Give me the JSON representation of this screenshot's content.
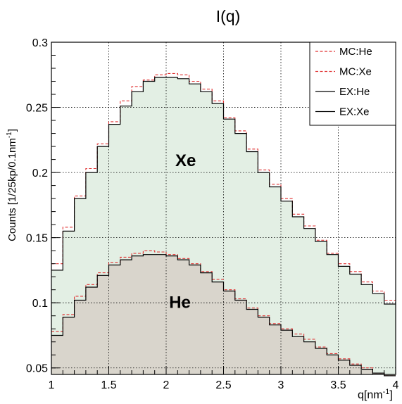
{
  "chart_data": {
    "type": "histogram",
    "title": "I(q)",
    "xlabel_main": "q[nm",
    "xlabel_sup": "-1",
    "xlabel_end": "]",
    "ylabel_main": "Counts [1/25kp/0.1nm",
    "ylabel_sup": "-1",
    "ylabel_end": "]",
    "xlim": [
      1,
      4
    ],
    "ylim": [
      0.045,
      0.3
    ],
    "x_ticks": [
      "1",
      "1.5",
      "2",
      "2.5",
      "3",
      "3.5",
      "4"
    ],
    "y_ticks": [
      "0.05",
      "0.1",
      "0.15",
      "0.2",
      "0.25",
      "0.3"
    ],
    "grid": true,
    "bin_edges": [
      1.0,
      1.1,
      1.2,
      1.3,
      1.4,
      1.5,
      1.6,
      1.7,
      1.8,
      1.9,
      2.0,
      2.1,
      2.2,
      2.3,
      2.4,
      2.5,
      2.6,
      2.7,
      2.8,
      2.9,
      3.0,
      3.1,
      3.2,
      3.3,
      3.4,
      3.5,
      3.6,
      3.7,
      3.8,
      3.9,
      4.0
    ],
    "series": [
      {
        "name": "MC:He",
        "style": "dashed",
        "color": "#e03030",
        "values": [
          0.078,
          0.091,
          0.105,
          0.114,
          0.123,
          0.131,
          0.135,
          0.138,
          0.14,
          0.139,
          0.137,
          0.134,
          0.13,
          0.124,
          0.118,
          0.11,
          0.103,
          0.096,
          0.09,
          0.084,
          0.08,
          0.076,
          0.072,
          0.066,
          0.061,
          0.057,
          0.053,
          0.05,
          0.046,
          0.044
        ]
      },
      {
        "name": "MC:Xe",
        "style": "dashed",
        "color": "#e03030",
        "values": [
          0.13,
          0.158,
          0.182,
          0.203,
          0.222,
          0.239,
          0.255,
          0.266,
          0.271,
          0.275,
          0.276,
          0.275,
          0.27,
          0.264,
          0.255,
          0.242,
          0.232,
          0.218,
          0.202,
          0.191,
          0.18,
          0.168,
          0.159,
          0.148,
          0.138,
          0.13,
          0.124,
          0.116,
          0.109,
          0.102
        ]
      },
      {
        "name": "EX:He",
        "style": "solid",
        "color": "#000000",
        "values": [
          0.075,
          0.089,
          0.102,
          0.112,
          0.121,
          0.129,
          0.133,
          0.136,
          0.137,
          0.137,
          0.136,
          0.133,
          0.129,
          0.123,
          0.116,
          0.109,
          0.102,
          0.095,
          0.089,
          0.083,
          0.079,
          0.074,
          0.07,
          0.065,
          0.06,
          0.056,
          0.052,
          0.049,
          0.046,
          0.044
        ]
      },
      {
        "name": "EX:Xe",
        "style": "solid",
        "color": "#000000",
        "values": [
          0.125,
          0.155,
          0.18,
          0.2,
          0.22,
          0.237,
          0.251,
          0.262,
          0.27,
          0.273,
          0.273,
          0.272,
          0.268,
          0.262,
          0.253,
          0.241,
          0.23,
          0.216,
          0.2,
          0.189,
          0.178,
          0.166,
          0.157,
          0.147,
          0.137,
          0.128,
          0.122,
          0.114,
          0.107,
          0.099
        ]
      }
    ],
    "fills": [
      {
        "series": "EX:Xe",
        "color": "#e3efe4"
      },
      {
        "series": "EX:He",
        "color": "#d9d5cc"
      }
    ],
    "annotations": [
      {
        "text": "Xe",
        "x": 2.17,
        "y": 0.205
      },
      {
        "text": "He",
        "x": 2.12,
        "y": 0.096
      }
    ],
    "legend_position": "top-right"
  }
}
